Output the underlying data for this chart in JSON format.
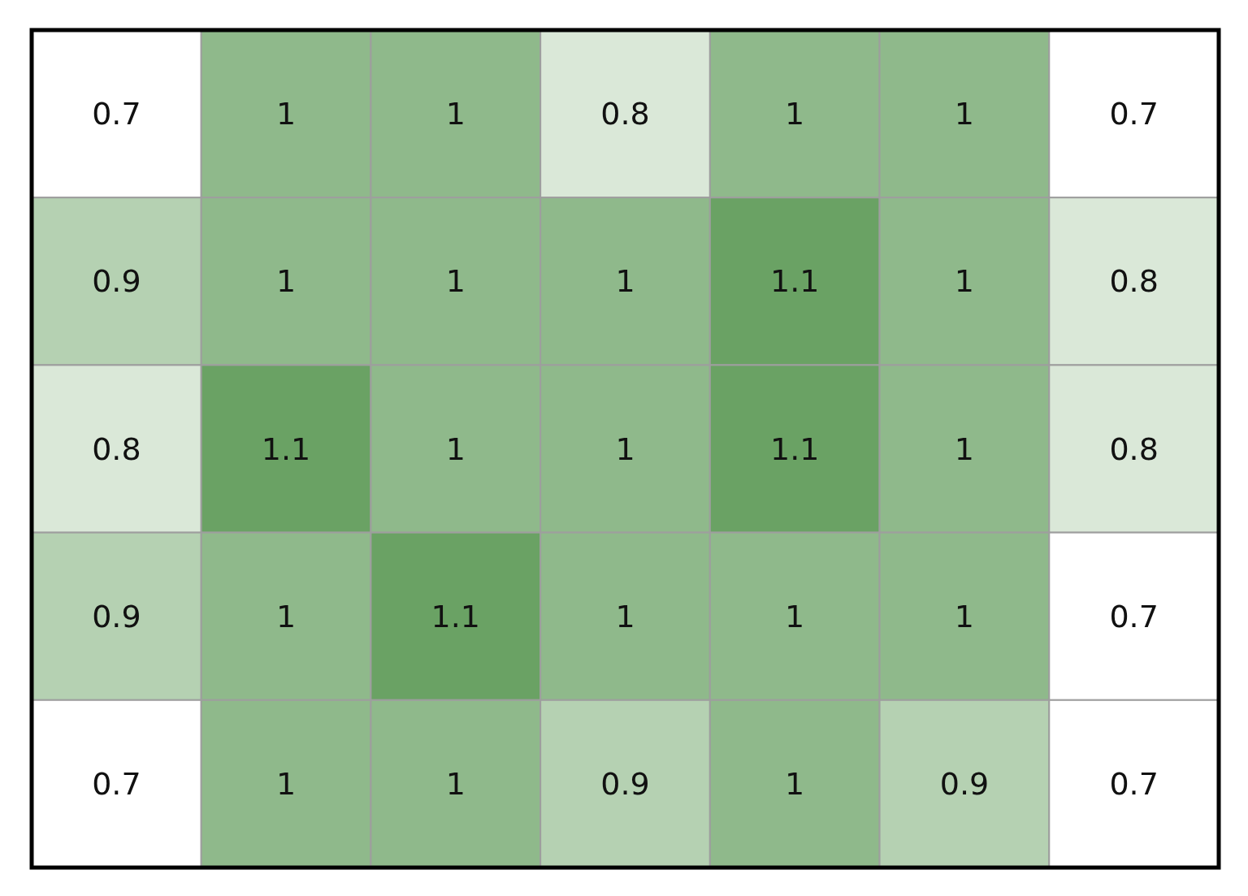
{
  "chart_data": {
    "type": "heatmap",
    "categories": [
      null,
      null,
      null,
      null,
      null,
      null,
      null
    ],
    "y_categories": [
      null,
      null,
      null,
      null,
      null
    ],
    "cells": [
      [
        0.7,
        1,
        1,
        0.8,
        1,
        1,
        0.7
      ],
      [
        0.9,
        1,
        1,
        1,
        1.1,
        1,
        0.8
      ],
      [
        0.8,
        1.1,
        1,
        1,
        1.1,
        1,
        0.8
      ],
      [
        0.9,
        1,
        1.1,
        1,
        1,
        1,
        0.7
      ],
      [
        0.7,
        1,
        1,
        0.9,
        1,
        0.9,
        0.7
      ]
    ],
    "color": "#6aa264",
    "data_labels": true
  }
}
